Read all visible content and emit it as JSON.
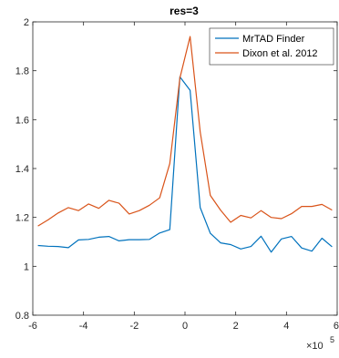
{
  "chart_data": {
    "type": "line",
    "title": "res=3",
    "xlabel": "",
    "ylabel": "",
    "xlim": [
      -6,
      6
    ],
    "ylim": [
      0.8,
      2
    ],
    "x_exponent_label": "×10",
    "x_exponent_power": "5",
    "xticks": [
      -6,
      -4,
      -2,
      0,
      2,
      4,
      6
    ],
    "yticks": [
      0.8,
      1,
      1.2,
      1.4,
      1.6,
      1.8,
      2
    ],
    "xtick_labels": [
      "-6",
      "-4",
      "-2",
      "0",
      "2",
      "4",
      "6"
    ],
    "ytick_labels": [
      "0.8",
      "1",
      "1.2",
      "1.4",
      "1.6",
      "1.8",
      "2"
    ],
    "grid": false,
    "legend_position": "top-right",
    "x": [
      -5.8,
      -5.4,
      -5.0,
      -4.6,
      -4.2,
      -3.8,
      -3.4,
      -3.0,
      -2.6,
      -2.2,
      -1.8,
      -1.4,
      -1.0,
      -0.6,
      -0.2,
      0.2,
      0.6,
      1.0,
      1.4,
      1.8,
      2.2,
      2.6,
      3.0,
      3.4,
      3.8,
      4.2,
      4.6,
      5.0,
      5.4,
      5.8
    ],
    "series": [
      {
        "name": "MrTAD Finder",
        "color": "#0072BD",
        "values": [
          1.085,
          1.082,
          1.081,
          1.076,
          1.108,
          1.11,
          1.119,
          1.122,
          1.104,
          1.109,
          1.109,
          1.11,
          1.136,
          1.15,
          1.775,
          1.72,
          1.24,
          1.135,
          1.096,
          1.089,
          1.071,
          1.081,
          1.123,
          1.058,
          1.112,
          1.122,
          1.075,
          1.062,
          1.115,
          1.08
        ]
      },
      {
        "name": "Dixon et al. 2012",
        "color": "#D95319",
        "values": [
          1.165,
          1.19,
          1.218,
          1.24,
          1.228,
          1.255,
          1.237,
          1.27,
          1.258,
          1.214,
          1.228,
          1.25,
          1.28,
          1.42,
          1.77,
          1.94,
          1.55,
          1.29,
          1.23,
          1.18,
          1.208,
          1.198,
          1.228,
          1.2,
          1.195,
          1.215,
          1.245,
          1.245,
          1.253,
          1.23
        ]
      }
    ]
  }
}
